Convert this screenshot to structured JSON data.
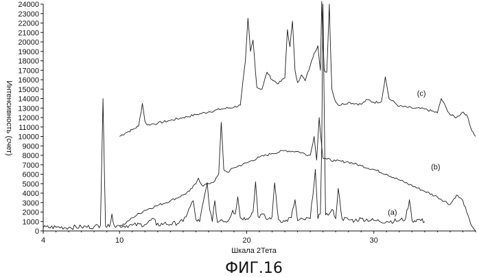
{
  "chart_data": {
    "type": "line",
    "title": "",
    "figure_caption": "ФИГ.16",
    "xlabel": "Шкала 2Тета",
    "ylabel": "Интенсивность (счет)",
    "xlim": [
      4,
      38
    ],
    "ylim": [
      0,
      24000
    ],
    "xticks": [
      4,
      10,
      20,
      30
    ],
    "yticks": [
      0,
      1000,
      2000,
      3000,
      4000,
      5000,
      6000,
      7000,
      8000,
      9000,
      10000,
      11000,
      12000,
      13000,
      14000,
      15000,
      16000,
      17000,
      18000,
      19000,
      20000,
      21000,
      22000,
      23000,
      24000
    ],
    "grid": false,
    "series": [
      {
        "name": "(c)",
        "color": "#1a1a1a",
        "x": [
          10.0,
          10.5,
          11.0,
          11.5,
          11.8,
          12.0,
          12.2,
          12.5,
          13.0,
          14.0,
          15.0,
          16.0,
          17.0,
          18.0,
          19.0,
          19.5,
          19.9,
          20.1,
          20.3,
          20.5,
          20.8,
          21.2,
          21.6,
          22.0,
          22.5,
          23.0,
          23.2,
          23.4,
          23.6,
          23.8,
          24.0,
          24.3,
          24.6,
          25.0,
          25.3,
          25.6,
          25.8,
          25.9,
          26.0,
          26.1,
          26.3,
          26.5,
          26.6,
          26.7,
          26.9,
          27.2,
          28.0,
          29.0,
          29.5,
          30.0,
          30.6,
          30.9,
          31.2,
          32.0,
          33.0,
          34.0,
          35.0,
          35.3,
          35.7,
          36.0,
          36.5,
          37.0,
          37.3,
          37.6,
          38.0
        ],
        "y": [
          10000,
          10400,
          10700,
          11100,
          13500,
          11600,
          11200,
          11300,
          11400,
          11700,
          12000,
          12300,
          12600,
          12900,
          13100,
          13300,
          18000,
          22500,
          19000,
          20200,
          15200,
          15000,
          16800,
          16000,
          15600,
          16200,
          21300,
          19500,
          22200,
          17000,
          15700,
          16500,
          15900,
          17500,
          18800,
          19600,
          17000,
          24300,
          20000,
          17000,
          16800,
          24000,
          19000,
          15000,
          14000,
          13300,
          13600,
          13400,
          13900,
          13600,
          13700,
          16300,
          14000,
          13200,
          13000,
          12900,
          12500,
          14000,
          13000,
          12300,
          12000,
          12600,
          12300,
          11000,
          10000
        ]
      },
      {
        "name": "(b)",
        "color": "#1a1a1a",
        "x": [
          10.0,
          10.5,
          11.0,
          12.0,
          13.0,
          14.0,
          15.0,
          15.5,
          16.0,
          16.2,
          16.5,
          17.0,
          17.5,
          17.8,
          18.0,
          18.2,
          18.5,
          19.0,
          20.0,
          21.0,
          22.0,
          23.0,
          24.0,
          25.0,
          25.3,
          25.5,
          25.7,
          25.9,
          26.0,
          26.3,
          27.0,
          28.0,
          29.0,
          30.0,
          31.0,
          32.0,
          33.0,
          34.0,
          35.0,
          36.0,
          36.5,
          37.0,
          37.3,
          37.6,
          38.0
        ],
        "y": [
          500,
          800,
          1400,
          2200,
          2700,
          3200,
          3800,
          4200,
          5000,
          5600,
          4800,
          5000,
          5300,
          6000,
          11500,
          6500,
          6200,
          6700,
          7200,
          7800,
          8200,
          8500,
          8400,
          8000,
          10000,
          7500,
          12000,
          9000,
          7700,
          7600,
          7400,
          7300,
          6900,
          6500,
          6000,
          5400,
          4800,
          4200,
          3600,
          2800,
          3800,
          3200,
          2000,
          800,
          0
        ]
      },
      {
        "name": "(a)",
        "color": "#1a1a1a",
        "x": [
          4.0,
          5.0,
          6.0,
          7.0,
          8.0,
          8.5,
          8.7,
          8.9,
          9.2,
          9.4,
          9.6,
          10.0,
          11.0,
          12.0,
          12.7,
          12.9,
          13.5,
          14.0,
          15.0,
          15.8,
          16.0,
          16.3,
          16.9,
          17.1,
          17.3,
          17.5,
          17.7,
          18.0,
          18.5,
          18.9,
          19.1,
          19.3,
          19.5,
          20.0,
          20.5,
          20.7,
          20.9,
          21.2,
          21.6,
          22.0,
          22.2,
          22.5,
          23.0,
          23.5,
          23.8,
          24.0,
          24.5,
          25.0,
          25.4,
          25.6,
          25.8,
          25.9,
          26.0,
          26.2,
          26.5,
          26.8,
          27.0,
          27.2,
          27.5,
          28.0,
          28.5,
          29.0,
          30.0,
          31.0,
          32.0,
          32.5,
          32.8,
          33.0,
          33.5,
          34.0
        ],
        "y": [
          350,
          400,
          380,
          420,
          450,
          600,
          14000,
          500,
          450,
          1800,
          500,
          550,
          600,
          700,
          1300,
          600,
          800,
          700,
          1000,
          3200,
          1200,
          1000,
          5100,
          2200,
          1000,
          3200,
          900,
          1200,
          1000,
          2200,
          1800,
          3600,
          1400,
          1300,
          2000,
          5200,
          1500,
          1800,
          1200,
          1500,
          5100,
          1200,
          1000,
          1400,
          3300,
          1100,
          1200,
          1300,
          6500,
          1300,
          1800,
          9000,
          24000,
          1700,
          1800,
          2200,
          1300,
          4500,
          1300,
          1200,
          1100,
          1300,
          1100,
          1000,
          1100,
          1300,
          3300,
          1100,
          1200,
          1000
        ]
      }
    ],
    "series_labels": [
      "(c)",
      "(b)",
      "(a)"
    ]
  }
}
